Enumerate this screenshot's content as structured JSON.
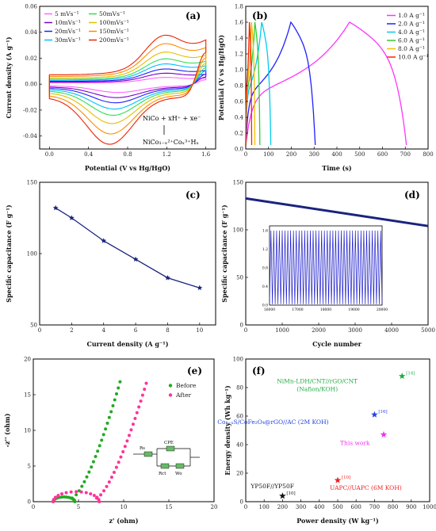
{
  "figure": {
    "panel_labels": [
      "(a)",
      "(b)",
      "(c)",
      "(d)",
      "(e)",
      "(f)"
    ]
  },
  "chart_data": [
    {
      "panel": "(a)",
      "type": "line",
      "xlabel": "Potential (V vs Hg/HgO)",
      "ylabel": "Current density (A g⁻¹)",
      "xlim": [
        -0.1,
        1.7
      ],
      "ylim": [
        -0.05,
        0.06
      ],
      "xticks": [
        "0.0",
        "0.4",
        "0.8",
        "1.2",
        "1.6"
      ],
      "yticks": [
        "-0.04",
        "-0.02",
        "0.00",
        "0.02",
        "0.04",
        "0.06"
      ],
      "legend_position": "top-left",
      "series": [
        {
          "name": "5 mVs⁻¹",
          "color": "#ff66ff",
          "amp": 0.004
        },
        {
          "name": "10mVs⁻¹",
          "color": "#7a00c8",
          "amp": 0.0065
        },
        {
          "name": "20mVs⁻¹",
          "color": "#2020ff",
          "amp": 0.009
        },
        {
          "name": "30mVs⁻¹",
          "color": "#00bfff",
          "amp": 0.012
        },
        {
          "name": "50mVs⁻¹",
          "color": "#33dd55",
          "amp": 0.015
        },
        {
          "name": "100mVs⁻¹",
          "color": "#e0c000",
          "amp": 0.019
        },
        {
          "name": "150mVs⁻¹",
          "color": "#ff8c00",
          "amp": 0.024
        },
        {
          "name": "200mVs⁻¹",
          "color": "#ee2200",
          "amp": 0.029
        }
      ],
      "annotations": [
        "NiCo + xH⁺ + xe⁻",
        "NiCo₁₋ₓ²⁺Coₓ³⁺Hₓ"
      ]
    },
    {
      "panel": "(b)",
      "type": "line",
      "xlabel": "Time (s)",
      "ylabel": "Potential (V vs Hg/HgO)",
      "xlim": [
        0,
        800
      ],
      "ylim": [
        0,
        1.8
      ],
      "xticks": [
        "0",
        "100",
        "200",
        "300",
        "400",
        "500",
        "600",
        "700",
        "800"
      ],
      "yticks": [
        "0.0",
        "0.2",
        "0.4",
        "0.6",
        "0.8",
        "1.0",
        "1.2",
        "1.4",
        "1.6",
        "1.8"
      ],
      "legend_position": "top-right",
      "series": [
        {
          "name": "1.0 A g⁻¹",
          "color": "#ff33ff",
          "t_charge": 455,
          "t_end": 705
        },
        {
          "name": "2.0 A g⁻¹",
          "color": "#2020ff",
          "t_charge": 198,
          "t_end": 305
        },
        {
          "name": "4.0 A g⁻¹",
          "color": "#00ccee",
          "t_charge": 70,
          "t_end": 110
        },
        {
          "name": "6.0 A g⁻¹",
          "color": "#33cc33",
          "t_charge": 40,
          "t_end": 62
        },
        {
          "name": "8.0 A g⁻¹",
          "color": "#f0c000",
          "t_charge": 25,
          "t_end": 40
        },
        {
          "name": "10.0 A g⁻¹",
          "color": "#ff2200",
          "t_charge": 16,
          "t_end": 26
        }
      ]
    },
    {
      "panel": "(c)",
      "type": "line",
      "xlabel": "Current density (A g⁻¹)",
      "ylabel": "Specific capacitance (F g⁻¹)",
      "xlim": [
        0,
        11
      ],
      "ylim": [
        50,
        150
      ],
      "xticks": [
        "0",
        "2",
        "4",
        "6",
        "8",
        "10"
      ],
      "yticks": [
        "50",
        "100",
        "150"
      ],
      "x": [
        1,
        2,
        4,
        6,
        8,
        10
      ],
      "y": [
        132,
        125,
        109,
        96,
        83,
        76
      ],
      "color": "#1a237e"
    },
    {
      "panel": "(d)",
      "type": "line",
      "xlabel": "Cycle number",
      "ylabel": "Specific capacitance (F g⁻¹)",
      "xlim": [
        0,
        5000
      ],
      "ylim": [
        0,
        150
      ],
      "xticks": [
        "0",
        "1000",
        "2000",
        "3000",
        "4000",
        "5000"
      ],
      "yticks": [
        "0",
        "50",
        "100",
        "150"
      ],
      "x": [
        0,
        5000
      ],
      "y": [
        133,
        104
      ],
      "color": "#1a237e",
      "inset": {
        "xlim": [
          16000,
          20000
        ],
        "ylim": [
          0.0,
          1.7
        ],
        "xticks": [
          "16000",
          "17000",
          "18000",
          "19000",
          "20000"
        ],
        "yticks": [
          "0.0",
          "0.4",
          "0.8",
          "1.2",
          "1.6"
        ],
        "cycles": 40,
        "vmax": 1.6
      }
    },
    {
      "panel": "(e)",
      "type": "scatter",
      "xlabel": "z' (ohm)",
      "ylabel": "-z'' (ohm)",
      "xlim": [
        0,
        20
      ],
      "ylim": [
        0,
        20
      ],
      "xticks": [
        "0",
        "5",
        "10",
        "15",
        "20"
      ],
      "yticks": [
        "0",
        "5",
        "10",
        "15",
        "20"
      ],
      "legend_position": "top-right",
      "series": [
        {
          "name": "Before",
          "color": "#22aa22",
          "rs": 2.2,
          "arc_end": 4.6,
          "tail_x0": 4.3,
          "tail_x1": 9.6,
          "tail_ymax": 16.8
        },
        {
          "name": "After",
          "color": "#ff3399",
          "rs": 2.2,
          "arc_end": 7.3,
          "tail_x0": 7.0,
          "tail_x1": 12.5,
          "tail_ymax": 16.6
        }
      ],
      "circuit_labels": [
        "Rs",
        "CPE",
        "Rct",
        "Wo"
      ]
    },
    {
      "panel": "(f)",
      "type": "scatter",
      "xlabel": "Power density (W kg⁻¹)",
      "ylabel": "Energy density (Wh kg⁻¹)",
      "xlim": [
        0,
        1000
      ],
      "ylim": [
        0,
        100
      ],
      "xticks": [
        "0",
        "100",
        "200",
        "300",
        "400",
        "500",
        "600",
        "700",
        "800",
        "900",
        "1000"
      ],
      "yticks": [
        "0",
        "20",
        "40",
        "60",
        "80",
        "100"
      ],
      "points": [
        {
          "x": 850,
          "y": 88,
          "color": "#22aa44",
          "ref": "[14]",
          "label": [
            "NiMn-LDH/CNT//rGO/CNT",
            "(Nafion/KOH)"
          ]
        },
        {
          "x": 700,
          "y": 61,
          "color": "#2244dd",
          "ref": "[16]",
          "label": [
            "Co₁₋ₓS/CoFe₂O₄@rGO//AC (2M KOH)"
          ]
        },
        {
          "x": 750,
          "y": 47,
          "color": "#ee33ee",
          "ref": "",
          "label": [
            "This work"
          ]
        },
        {
          "x": 500,
          "y": 15,
          "color": "#ee2222",
          "ref": "[10]",
          "label": [
            "UAPC//UAPC (6M KOH)"
          ]
        },
        {
          "x": 200,
          "y": 4,
          "color": "#111111",
          "ref": "[10]",
          "label": [
            "YP50F//YP50F"
          ]
        }
      ]
    }
  ]
}
